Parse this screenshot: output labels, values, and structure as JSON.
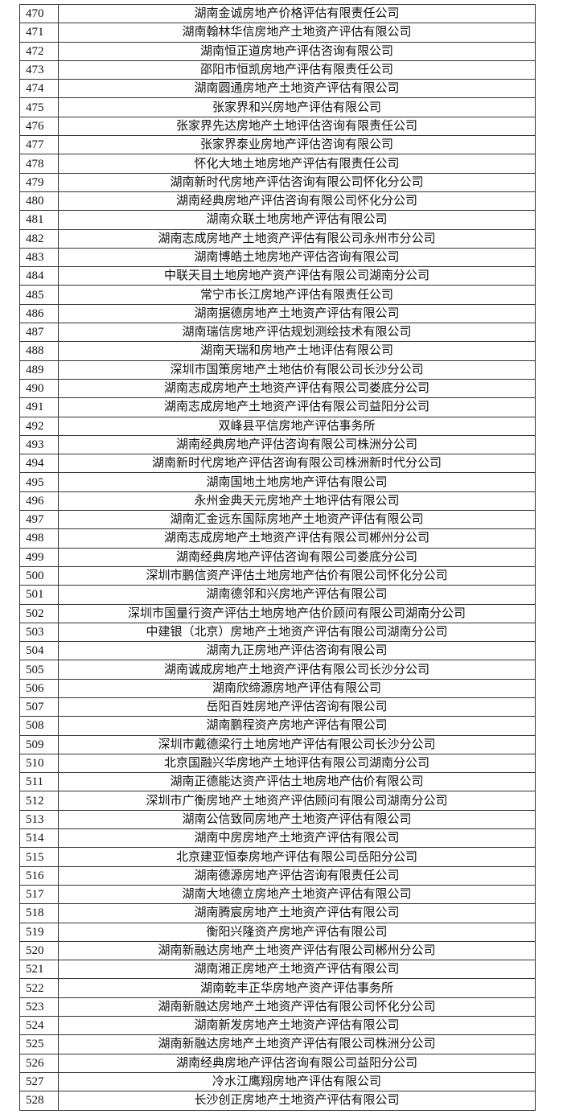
{
  "rows": [
    {
      "no": "470",
      "name": "湖南金诚房地产价格评估有限责任公司"
    },
    {
      "no": "471",
      "name": "湖南翰林华信房地产土地资产评估有限公司"
    },
    {
      "no": "472",
      "name": "湖南恒正道房地产评估咨询有限公司"
    },
    {
      "no": "473",
      "name": "邵阳市恒凯房地产评估有限责任公司"
    },
    {
      "no": "474",
      "name": "湖南圆通房地产土地资产评估有限公司"
    },
    {
      "no": "475",
      "name": "张家界和兴房地产评估有限公司"
    },
    {
      "no": "476",
      "name": "张家界先达房地产土地评估咨询有限责任公司"
    },
    {
      "no": "477",
      "name": "张家界泰业房地产评估咨询有限公司"
    },
    {
      "no": "478",
      "name": "怀化大地土地房地产评估有限责任公司"
    },
    {
      "no": "479",
      "name": "湖南新时代房地产评估咨询有限公司怀化分公司"
    },
    {
      "no": "480",
      "name": "湖南经典房地产评估咨询有限公司怀化分公司"
    },
    {
      "no": "481",
      "name": "湖南众联土地房地产评估有限公司"
    },
    {
      "no": "482",
      "name": "湖南志成房地产土地资产评估有限公司永州市分公司"
    },
    {
      "no": "483",
      "name": "湖南博皓土地房地产评估咨询有限公司"
    },
    {
      "no": "484",
      "name": "中联天目土地房地产资产评估有限公司湖南分公司"
    },
    {
      "no": "485",
      "name": "常宁市长江房地产评估有限责任公司"
    },
    {
      "no": "486",
      "name": "湖南据德房地产土地资产评估有限公司"
    },
    {
      "no": "487",
      "name": "湖南瑞信房地产评估规划测绘技术有限公司"
    },
    {
      "no": "488",
      "name": "湖南天瑞和房地产土地评估有限公司"
    },
    {
      "no": "489",
      "name": "深圳市国策房地产土地估价有限公司长沙分公司"
    },
    {
      "no": "490",
      "name": "湖南志成房地产土地资产评估有限公司娄底分公司"
    },
    {
      "no": "491",
      "name": "湖南志成房地产土地资产评估有限公司益阳分公司"
    },
    {
      "no": "492",
      "name": "双峰县平信房地产评估事务所"
    },
    {
      "no": "493",
      "name": "湖南经典房地产评估咨询有限公司株洲分公司"
    },
    {
      "no": "494",
      "name": "湖南新时代房地产评估咨询有限公司株洲新时代分公司"
    },
    {
      "no": "495",
      "name": "湖南国地土地房地产评估有限公司"
    },
    {
      "no": "496",
      "name": "永州金典天元房地产土地评估有限公司"
    },
    {
      "no": "497",
      "name": "湖南汇金远东国际房地产土地资产评估有限公司"
    },
    {
      "no": "498",
      "name": "湖南志成房地产土地资产评估有限公司郴州分公司"
    },
    {
      "no": "499",
      "name": "湖南经典房地产评估咨询有限公司娄底分公司"
    },
    {
      "no": "500",
      "name": "深圳市鹏信资产评估土地房地产估价有限公司怀化分公司"
    },
    {
      "no": "501",
      "name": "湖南德邻和兴房地产评估有限公司"
    },
    {
      "no": "502",
      "name": "深圳市国量行资产评估土地房地产估价顾问有限公司湖南分公司"
    },
    {
      "no": "503",
      "name": "中建银（北京）房地产土地资产评估有限公司湖南分公司"
    },
    {
      "no": "504",
      "name": "湖南九正房地产评估咨询有限公司"
    },
    {
      "no": "505",
      "name": "湖南诚成房地产土地资产评估有限公司长沙分公司"
    },
    {
      "no": "506",
      "name": "湖南欣缔源房地产评估有限公司"
    },
    {
      "no": "507",
      "name": "岳阳百姓房地产评估咨询有限公司"
    },
    {
      "no": "508",
      "name": "湖南鹏程资产房地产评估有限公司"
    },
    {
      "no": "509",
      "name": "深圳市戴德梁行土地房地产评估有限公司长沙分公司"
    },
    {
      "no": "510",
      "name": "北京国融兴华房地产土地评估有限公司湖南分公司"
    },
    {
      "no": "511",
      "name": "湖南正德能达资产评估土地房地产估价有限公司"
    },
    {
      "no": "512",
      "name": "深圳市广衡房地产土地资产评估顾问有限公司湖南分公司"
    },
    {
      "no": "513",
      "name": "湖南公信致同房地产土地资产评估有限公司"
    },
    {
      "no": "514",
      "name": "湖南中房房地产土地资产评估有限公司"
    },
    {
      "no": "515",
      "name": "北京建亚恒泰房地产评估有限公司岳阳分公司"
    },
    {
      "no": "516",
      "name": "湖南德源房地产评估咨询有限责任公司"
    },
    {
      "no": "517",
      "name": "湖南大地德立房地产土地资产评估有限公司"
    },
    {
      "no": "518",
      "name": "湖南腾宸房地产土地资产评估有限公司"
    },
    {
      "no": "519",
      "name": "衡阳兴隆资产房地产评估有限公司"
    },
    {
      "no": "520",
      "name": "湖南新融达房地产土地资产评估有限公司郴州分公司"
    },
    {
      "no": "521",
      "name": "湖南湘正房地产土地资产评估有限公司"
    },
    {
      "no": "522",
      "name": "湖南乾丰正华房地产资产评估事务所"
    },
    {
      "no": "523",
      "name": "湖南新融达房地产土地资产评估有限公司怀化分公司"
    },
    {
      "no": "524",
      "name": "湖南新发房地产土地资产评估有限公司"
    },
    {
      "no": "525",
      "name": "湖南新融达房地产土地资产评估有限公司株洲分公司"
    },
    {
      "no": "526",
      "name": "湖南经典房地产评估咨询有限公司益阳分公司"
    },
    {
      "no": "527",
      "name": "冷水江鹰翔房地产评估有限公司"
    },
    {
      "no": "528",
      "name": "长沙创正房地产土地资产评估有限公司"
    }
  ]
}
